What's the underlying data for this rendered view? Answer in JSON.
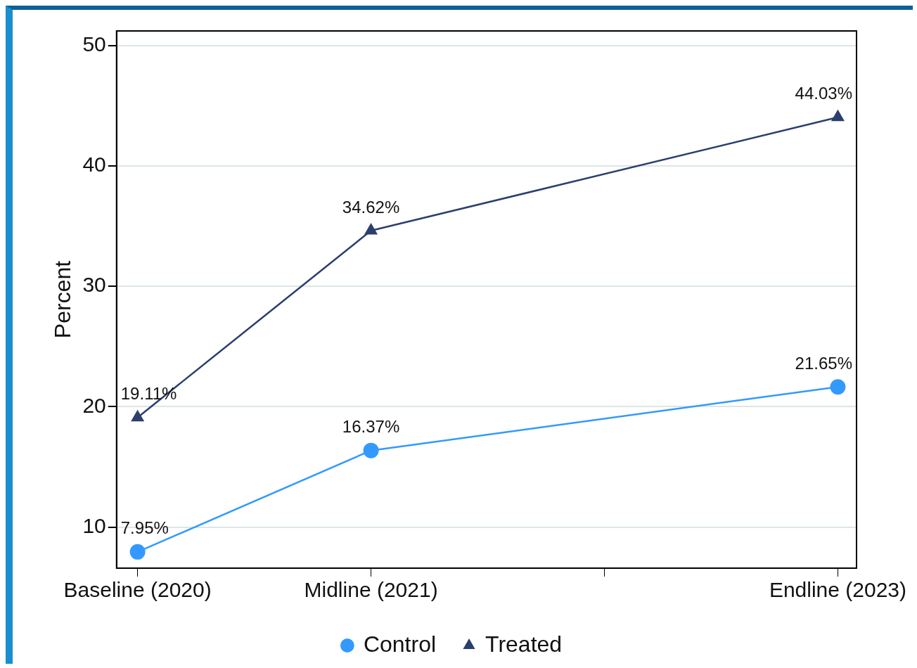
{
  "chart_data": {
    "type": "line",
    "ylabel": "Percent",
    "x": [
      2020,
      2021,
      2023
    ],
    "xlim": [
      2019.91,
      2023.08
    ],
    "xticks": [
      {
        "value": 2020,
        "label": "Baseline (2020)"
      },
      {
        "value": 2021,
        "label": "Midline (2021)"
      },
      {
        "value": 2022,
        "label": null
      },
      {
        "value": 2023,
        "label": "Endline (2023)"
      }
    ],
    "ylim": [
      6.6,
      51.2
    ],
    "yticks": [
      10,
      20,
      30,
      40,
      50
    ],
    "grid": "y",
    "legend": "bottom",
    "series": [
      {
        "name": "Control",
        "color": "#3399ff",
        "marker": "circle",
        "values": [
          7.95,
          16.37,
          21.65
        ],
        "value_labels": [
          "7.95%",
          "16.37%",
          "21.65%"
        ]
      },
      {
        "name": "Treated",
        "color": "#2b3f6e",
        "marker": "triangle",
        "values": [
          19.11,
          34.62,
          44.03
        ],
        "value_labels": [
          "19.11%",
          "34.62%",
          "44.03%"
        ]
      }
    ]
  }
}
